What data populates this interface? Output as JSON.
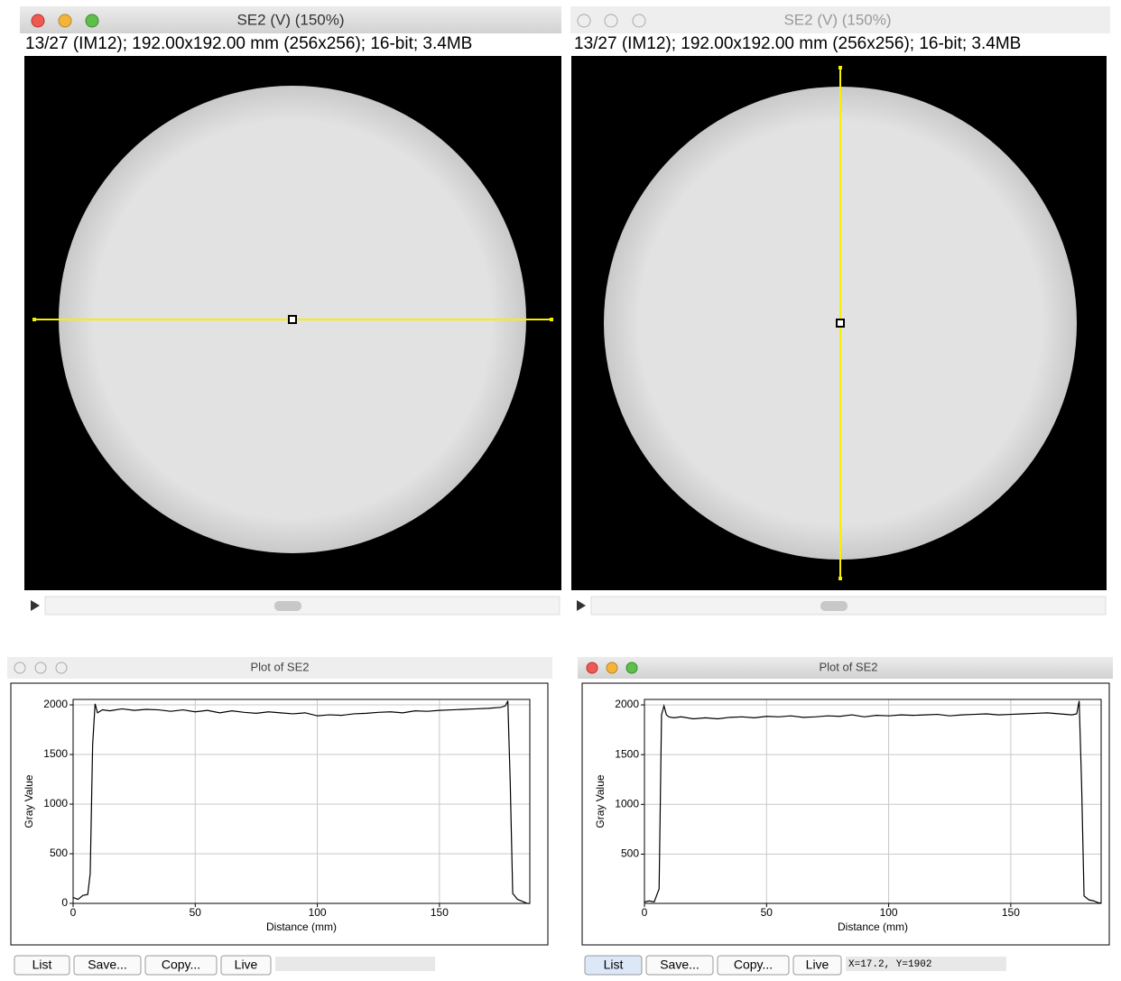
{
  "image_windows": [
    {
      "title": "SE2 (V) (150%)",
      "info": "13/27 (IM12); 192.00x192.00 mm (256x256); 16-bit; 3.4MB"
    },
    {
      "title": "SE2 (V) (150%)",
      "info": "13/27 (IM12); 192.00x192.00 mm (256x256); 16-bit; 3.4MB"
    }
  ],
  "plot_windows": [
    {
      "title": "Plot of SE2",
      "buttons": [
        "List",
        "Save...",
        "Copy...",
        "Live"
      ]
    },
    {
      "title": "Plot of SE2",
      "buttons": [
        "List",
        "Save...",
        "Copy...",
        "Live"
      ],
      "status": "X=17.2, Y=1902"
    }
  ],
  "chart_data": [
    {
      "type": "line",
      "x_label": "Distance (mm)",
      "y_label": "Gray Value",
      "grid": true,
      "color": "#000000",
      "xlim": [
        0,
        187
      ],
      "ylim": [
        0,
        2055
      ],
      "xticks": [
        0,
        50,
        100,
        150
      ],
      "yticks": [
        0,
        500,
        1000,
        1500,
        2000
      ],
      "x": [
        0,
        2,
        4,
        6,
        7,
        8,
        9,
        10,
        12,
        15,
        20,
        25,
        30,
        35,
        40,
        45,
        50,
        55,
        60,
        65,
        70,
        75,
        80,
        85,
        90,
        95,
        100,
        105,
        110,
        115,
        120,
        125,
        130,
        135,
        140,
        145,
        150,
        155,
        160,
        165,
        170,
        175,
        177,
        178,
        179,
        180,
        182,
        184,
        186,
        187
      ],
      "values": [
        60,
        40,
        80,
        90,
        300,
        1600,
        2010,
        1920,
        1950,
        1940,
        1960,
        1945,
        1955,
        1950,
        1935,
        1950,
        1930,
        1945,
        1920,
        1940,
        1925,
        1915,
        1930,
        1920,
        1910,
        1920,
        1890,
        1900,
        1895,
        1910,
        1915,
        1925,
        1930,
        1920,
        1940,
        1935,
        1945,
        1950,
        1955,
        1960,
        1965,
        1975,
        1990,
        2040,
        1200,
        100,
        40,
        20,
        0,
        0
      ]
    },
    {
      "type": "line",
      "x_label": "Distance (mm)",
      "y_label": "Gray Value",
      "grid": true,
      "color": "#000000",
      "xlim": [
        0,
        187
      ],
      "ylim": [
        5,
        2055
      ],
      "xticks": [
        0,
        50,
        100,
        150
      ],
      "yticks": [
        500,
        1000,
        1500,
        2000
      ],
      "x": [
        0,
        2,
        4,
        6,
        7,
        8,
        9,
        10,
        12,
        15,
        20,
        25,
        30,
        35,
        40,
        45,
        50,
        55,
        60,
        65,
        70,
        75,
        80,
        85,
        90,
        95,
        100,
        105,
        110,
        115,
        120,
        125,
        130,
        135,
        140,
        145,
        150,
        155,
        160,
        165,
        170,
        175,
        177,
        178,
        179,
        180,
        182,
        184,
        186,
        187
      ],
      "values": [
        20,
        30,
        20,
        150,
        1900,
        1990,
        1900,
        1880,
        1870,
        1880,
        1860,
        1870,
        1860,
        1875,
        1880,
        1870,
        1885,
        1880,
        1890,
        1875,
        1880,
        1890,
        1885,
        1900,
        1880,
        1895,
        1890,
        1900,
        1895,
        1900,
        1905,
        1890,
        1900,
        1905,
        1910,
        1900,
        1905,
        1910,
        1915,
        1920,
        1910,
        1900,
        1910,
        2040,
        1200,
        80,
        40,
        30,
        10,
        10
      ]
    }
  ]
}
